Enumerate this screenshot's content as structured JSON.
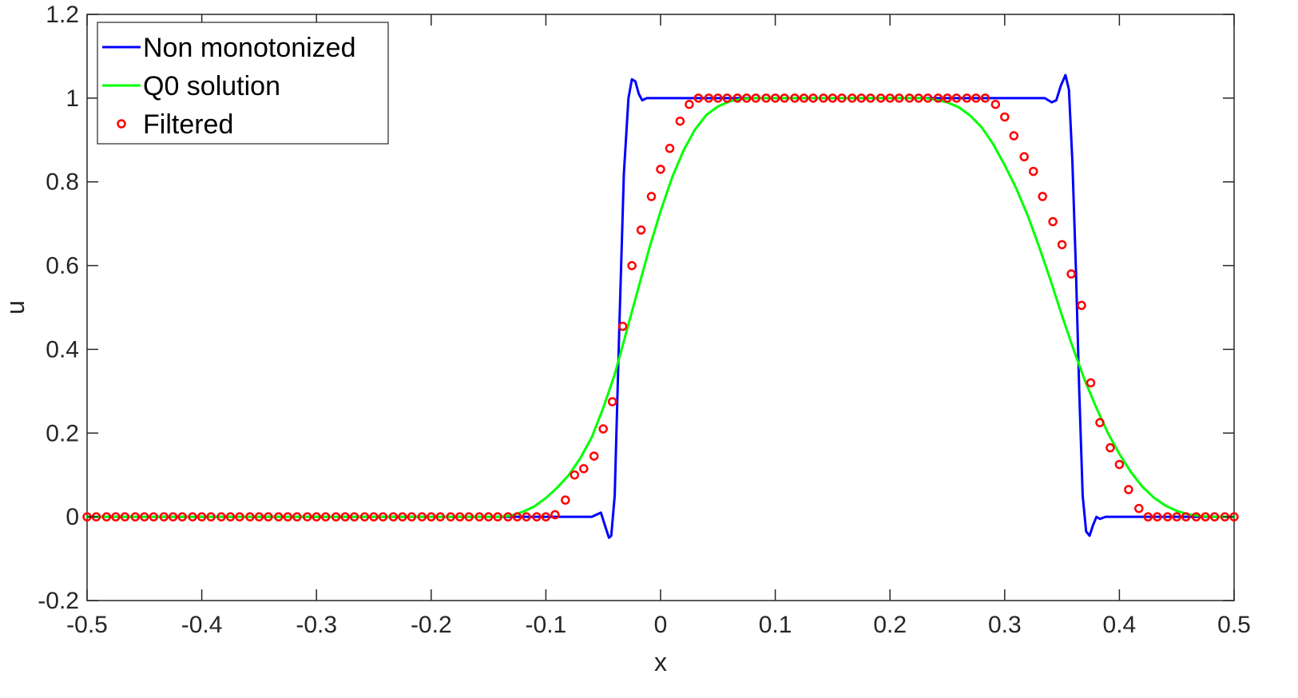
{
  "chart_data": {
    "type": "line",
    "xlabel": "x",
    "ylabel": "u",
    "xlim": [
      -0.5,
      0.5
    ],
    "ylim": [
      -0.2,
      1.2
    ],
    "xticks": [
      -0.5,
      -0.4,
      -0.3,
      -0.2,
      -0.1,
      0,
      0.1,
      0.2,
      0.3,
      0.4,
      0.5
    ],
    "xtick_labels": [
      "-0.5",
      "-0.4",
      "-0.3",
      "-0.2",
      "-0.1",
      "0",
      "0.1",
      "0.2",
      "0.3",
      "0.4",
      "0.5"
    ],
    "yticks": [
      -0.2,
      0,
      0.2,
      0.4,
      0.6,
      0.8,
      1,
      1.2
    ],
    "ytick_labels": [
      "-0.2",
      "0",
      "0.2",
      "0.4",
      "0.6",
      "0.8",
      "1",
      "1.2"
    ],
    "grid": false,
    "box": true,
    "legend_position": "top-left",
    "series": [
      {
        "name": "Non monotonized",
        "style": "line",
        "color": "#0000ff",
        "x": [
          -0.5,
          -0.06,
          -0.052,
          -0.048,
          -0.045,
          -0.043,
          -0.04,
          -0.036,
          -0.032,
          -0.028,
          -0.025,
          -0.022,
          -0.019,
          -0.016,
          -0.012,
          -0.008,
          0.0,
          0.28,
          0.335,
          0.341,
          0.345,
          0.349,
          0.353,
          0.356,
          0.359,
          0.362,
          0.365,
          0.368,
          0.371,
          0.374,
          0.377,
          0.38,
          0.383,
          0.388,
          0.393,
          0.5
        ],
        "y": [
          0.0,
          0.0,
          0.01,
          -0.025,
          -0.05,
          -0.045,
          0.05,
          0.45,
          0.82,
          1.0,
          1.045,
          1.04,
          1.01,
          0.995,
          1.0,
          1.0,
          1.0,
          1.0,
          1.0,
          0.99,
          0.995,
          1.03,
          1.055,
          1.02,
          0.85,
          0.6,
          0.3,
          0.05,
          -0.035,
          -0.045,
          -0.02,
          0.0,
          -0.005,
          0.0,
          0.0,
          0.0
        ]
      },
      {
        "name": "Q0 solution",
        "style": "line",
        "color": "#00ff00",
        "x": [
          -0.5,
          -0.14,
          -0.13,
          -0.12,
          -0.11,
          -0.1,
          -0.09,
          -0.08,
          -0.07,
          -0.06,
          -0.05,
          -0.04,
          -0.03,
          -0.02,
          -0.01,
          0.0,
          0.01,
          0.02,
          0.03,
          0.04,
          0.05,
          0.06,
          0.07,
          0.08,
          0.23,
          0.24,
          0.25,
          0.26,
          0.27,
          0.28,
          0.29,
          0.3,
          0.31,
          0.32,
          0.33,
          0.34,
          0.35,
          0.36,
          0.37,
          0.38,
          0.39,
          0.4,
          0.41,
          0.42,
          0.43,
          0.44,
          0.45,
          0.46,
          0.47,
          0.48,
          0.5
        ],
        "y": [
          0.0,
          0.0,
          0.003,
          0.012,
          0.025,
          0.045,
          0.07,
          0.1,
          0.14,
          0.19,
          0.26,
          0.34,
          0.44,
          0.54,
          0.64,
          0.73,
          0.81,
          0.875,
          0.925,
          0.96,
          0.98,
          0.992,
          0.998,
          1.0,
          1.0,
          0.996,
          0.99,
          0.978,
          0.958,
          0.93,
          0.89,
          0.84,
          0.785,
          0.72,
          0.645,
          0.565,
          0.48,
          0.4,
          0.325,
          0.26,
          0.2,
          0.15,
          0.107,
          0.072,
          0.046,
          0.027,
          0.014,
          0.006,
          0.002,
          0.0,
          0.0
        ]
      },
      {
        "name": "Filtered",
        "style": "markers",
        "marker": "circle",
        "color": "#ff0000",
        "x": [
          -0.5,
          -0.492,
          -0.483,
          -0.475,
          -0.467,
          -0.458,
          -0.45,
          -0.442,
          -0.433,
          -0.425,
          -0.417,
          -0.408,
          -0.4,
          -0.392,
          -0.383,
          -0.375,
          -0.367,
          -0.358,
          -0.35,
          -0.342,
          -0.333,
          -0.325,
          -0.317,
          -0.308,
          -0.3,
          -0.292,
          -0.283,
          -0.275,
          -0.267,
          -0.258,
          -0.25,
          -0.242,
          -0.233,
          -0.225,
          -0.217,
          -0.208,
          -0.2,
          -0.192,
          -0.183,
          -0.175,
          -0.167,
          -0.158,
          -0.15,
          -0.142,
          -0.133,
          -0.125,
          -0.117,
          -0.108,
          -0.1,
          -0.092,
          -0.083,
          -0.075,
          -0.067,
          -0.058,
          -0.05,
          -0.042,
          -0.033,
          -0.025,
          -0.017,
          -0.008,
          0.0,
          0.008,
          0.017,
          0.025,
          0.033,
          0.042,
          0.05,
          0.058,
          0.067,
          0.075,
          0.083,
          0.092,
          0.1,
          0.108,
          0.117,
          0.125,
          0.133,
          0.142,
          0.15,
          0.158,
          0.167,
          0.175,
          0.183,
          0.192,
          0.2,
          0.208,
          0.217,
          0.225,
          0.233,
          0.242,
          0.25,
          0.258,
          0.267,
          0.275,
          0.283,
          0.292,
          0.3,
          0.308,
          0.317,
          0.325,
          0.333,
          0.342,
          0.35,
          0.358,
          0.367,
          0.375,
          0.383,
          0.392,
          0.4,
          0.408,
          0.417,
          0.425,
          0.433,
          0.442,
          0.45,
          0.458,
          0.467,
          0.475,
          0.483,
          0.492,
          0.5
        ],
        "y": [
          0,
          0,
          0,
          0,
          0,
          0,
          0,
          0,
          0,
          0,
          0,
          0,
          0,
          0,
          0,
          0,
          0,
          0,
          0,
          0,
          0,
          0,
          0,
          0,
          0,
          0,
          0,
          0,
          0,
          0,
          0,
          0,
          0,
          0,
          0,
          0,
          0,
          0,
          0,
          0,
          0,
          0,
          0,
          0,
          0,
          0,
          0,
          0,
          0,
          0.005,
          0.04,
          0.1,
          0.115,
          0.145,
          0.21,
          0.275,
          0.455,
          0.6,
          0.685,
          0.765,
          0.83,
          0.88,
          0.945,
          0.985,
          1.0,
          1.0,
          1.0,
          1.0,
          1.0,
          1.0,
          1.0,
          1.0,
          1.0,
          1.0,
          1.0,
          1.0,
          1.0,
          1.0,
          1.0,
          1.0,
          1.0,
          1.0,
          1.0,
          1.0,
          1.0,
          1.0,
          1.0,
          1.0,
          1.0,
          1.0,
          1.0,
          1.0,
          1.0,
          1.0,
          1.0,
          0.985,
          0.955,
          0.91,
          0.86,
          0.825,
          0.765,
          0.705,
          0.65,
          0.58,
          0.505,
          0.32,
          0.225,
          0.165,
          0.125,
          0.065,
          0.02,
          0,
          0,
          0,
          0,
          0,
          0,
          0,
          0,
          0,
          0
        ]
      }
    ]
  }
}
